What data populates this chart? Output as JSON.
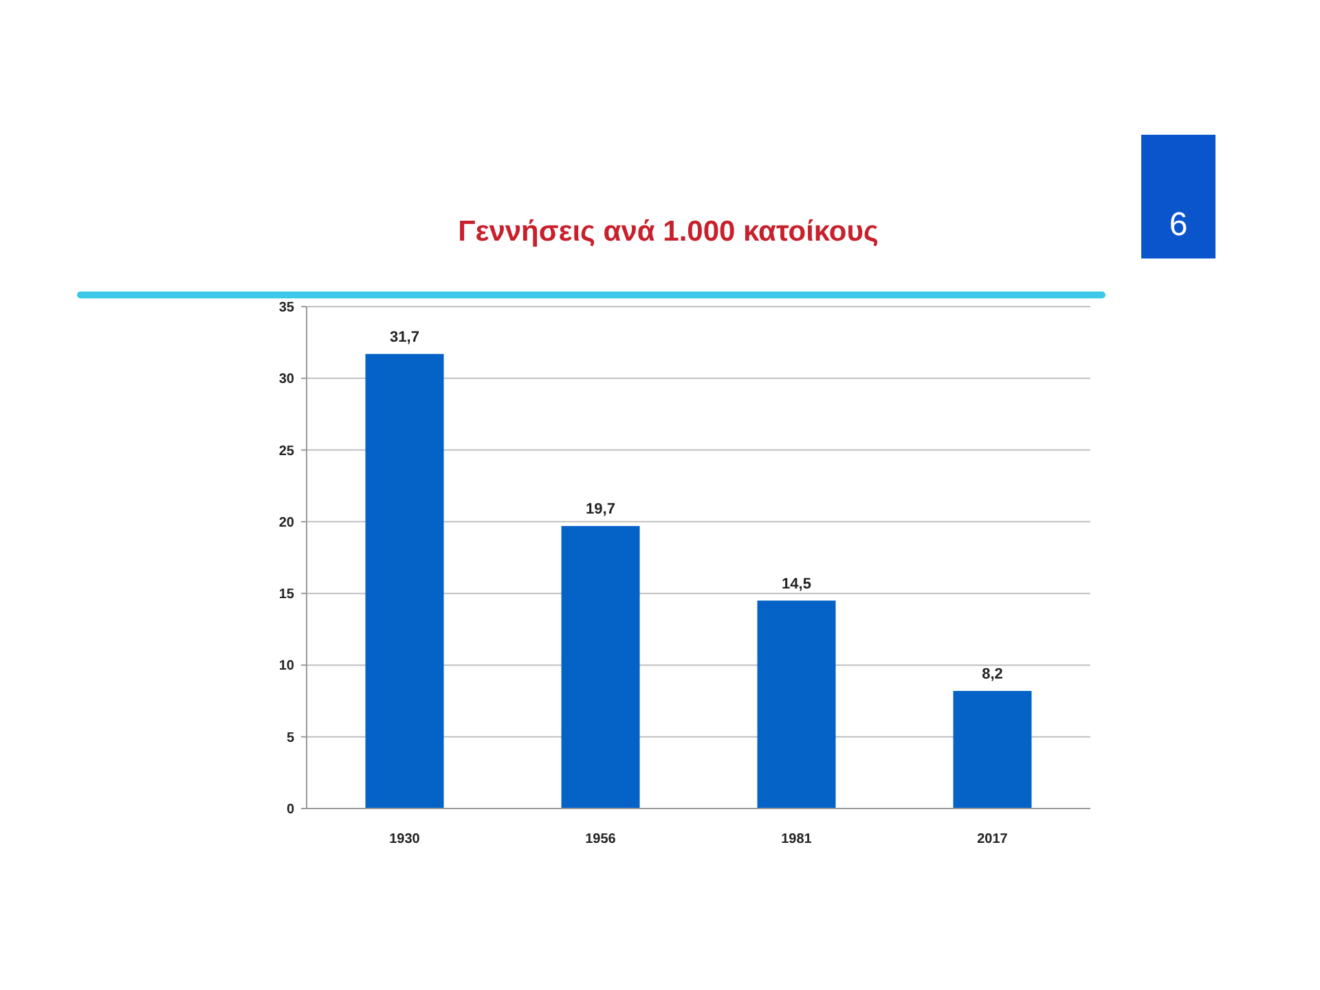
{
  "chart_data": {
    "type": "bar",
    "title": "Γεννήσεις ανά 1.000 κατοίκους",
    "categories": [
      "1930",
      "1956",
      "1981",
      "2017"
    ],
    "values": [
      31.7,
      19.7,
      14.5,
      8.2
    ],
    "value_labels": [
      "31,7",
      "19,7",
      "14,5",
      "8,2"
    ],
    "color": "#0563c8",
    "ylim": [
      0,
      35
    ],
    "yticks": [
      0,
      5,
      10,
      15,
      20,
      25,
      30,
      35
    ],
    "grid": "y",
    "annotations": [
      "6"
    ]
  }
}
